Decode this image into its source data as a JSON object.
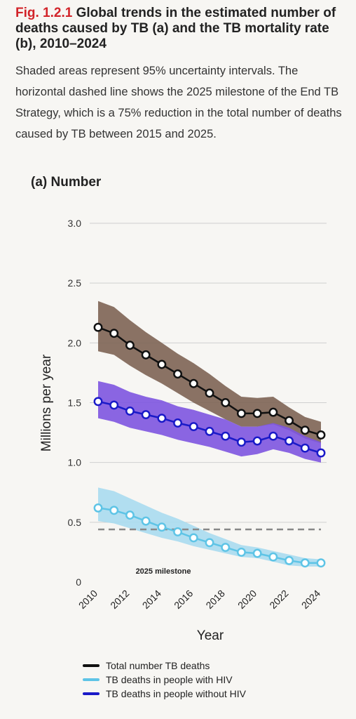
{
  "header": {
    "fig_number": "Fig. 1.2.1",
    "title": "Global trends in the estimated number of deaths caused by TB (a) and the TB mortality rate (b), 2010–2024",
    "caption": "Shaded areas represent 95% uncertainty intervals. The horizontal dashed line shows the 2025 milestone of the End TB Strategy, which is a 75% reduction in the total number of deaths caused by TB between 2015 and 2025."
  },
  "panel": {
    "title": "(a) Number"
  },
  "chart_data": {
    "type": "line",
    "xlabel": "Year",
    "ylabel": "Millions per year",
    "ylim": [
      0,
      3.0
    ],
    "xlim": [
      2010,
      2024
    ],
    "yticks": [
      "0",
      "0.5",
      "1.0",
      "1.5",
      "2.0",
      "2.5",
      "3.0"
    ],
    "ytick_values": [
      0,
      0.5,
      1.0,
      1.5,
      2.0,
      2.5,
      3.0
    ],
    "xticks": [
      "2010",
      "2012",
      "2014",
      "2016",
      "2018",
      "2020",
      "2022",
      "2024"
    ],
    "xtick_values": [
      2010,
      2012,
      2014,
      2016,
      2018,
      2020,
      2022,
      2024
    ],
    "grid": "horizontal",
    "x": [
      2010,
      2011,
      2012,
      2013,
      2014,
      2015,
      2016,
      2017,
      2018,
      2019,
      2020,
      2021,
      2022,
      2023,
      2024
    ],
    "series": [
      {
        "name": "Total number TB deaths",
        "line_color": "#111111",
        "band_color": "#7d6454",
        "values": [
          2.13,
          2.08,
          1.98,
          1.9,
          1.82,
          1.74,
          1.66,
          1.58,
          1.5,
          1.41,
          1.41,
          1.42,
          1.35,
          1.27,
          1.23
        ],
        "lower": [
          1.93,
          1.9,
          1.81,
          1.73,
          1.66,
          1.58,
          1.5,
          1.43,
          1.36,
          1.3,
          1.3,
          1.32,
          1.27,
          1.2,
          1.16
        ],
        "upper": [
          2.35,
          2.3,
          2.19,
          2.09,
          2.0,
          1.91,
          1.83,
          1.74,
          1.64,
          1.55,
          1.54,
          1.55,
          1.46,
          1.38,
          1.34
        ]
      },
      {
        "name": "TB deaths in people without HIV",
        "line_color": "#1a1ac8",
        "band_color": "#7d55e0",
        "values": [
          1.51,
          1.48,
          1.43,
          1.4,
          1.37,
          1.33,
          1.3,
          1.26,
          1.22,
          1.17,
          1.18,
          1.22,
          1.18,
          1.12,
          1.08
        ],
        "lower": [
          1.37,
          1.34,
          1.29,
          1.26,
          1.23,
          1.19,
          1.16,
          1.13,
          1.09,
          1.05,
          1.07,
          1.11,
          1.08,
          1.03,
          1.0
        ],
        "upper": [
          1.68,
          1.65,
          1.59,
          1.55,
          1.52,
          1.47,
          1.44,
          1.4,
          1.36,
          1.3,
          1.3,
          1.33,
          1.29,
          1.22,
          1.17
        ]
      },
      {
        "name": "TB deaths in people with HIV",
        "line_color": "#5ec4e6",
        "band_color": "#a8dcef",
        "values": [
          0.62,
          0.6,
          0.56,
          0.51,
          0.46,
          0.42,
          0.37,
          0.33,
          0.29,
          0.25,
          0.24,
          0.21,
          0.18,
          0.16,
          0.16
        ],
        "lower": [
          0.51,
          0.49,
          0.45,
          0.41,
          0.37,
          0.34,
          0.3,
          0.27,
          0.24,
          0.21,
          0.2,
          0.17,
          0.14,
          0.13,
          0.13
        ],
        "upper": [
          0.79,
          0.76,
          0.7,
          0.64,
          0.58,
          0.53,
          0.47,
          0.41,
          0.36,
          0.31,
          0.29,
          0.26,
          0.23,
          0.2,
          0.19
        ]
      }
    ],
    "milestone": {
      "value": 0.44,
      "label": "2025 milestone",
      "color": "#888888"
    },
    "legend": {
      "position": "bottom",
      "items": [
        {
          "label": "Total number TB deaths",
          "color": "#111111"
        },
        {
          "label": "TB deaths in people with HIV",
          "color": "#5ec4e6"
        },
        {
          "label": "TB deaths in people without HIV",
          "color": "#1a1ac8"
        }
      ]
    }
  }
}
